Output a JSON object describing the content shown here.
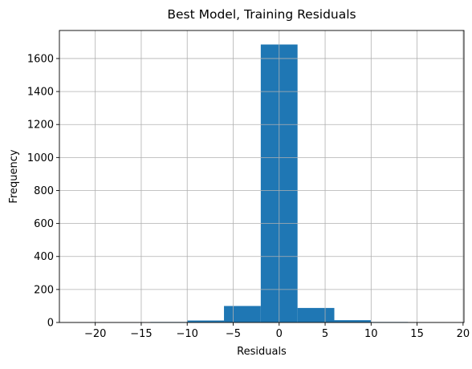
{
  "chart_data": {
    "type": "bar",
    "title": "Best Model, Training Residuals",
    "xlabel": "Residuals",
    "ylabel": "Frequency",
    "xlim": [
      -23.9,
      20.1
    ],
    "ylim": [
      0,
      1770
    ],
    "grid": true,
    "bar_color": "#1f77b4",
    "grid_color": "#b0b0b0",
    "bins": [
      {
        "x0": -22.0,
        "x1": -18.0,
        "count": 1
      },
      {
        "x0": -18.0,
        "x1": -14.0,
        "count": 1
      },
      {
        "x0": -14.0,
        "x1": -10.0,
        "count": 3
      },
      {
        "x0": -10.0,
        "x1": -6.0,
        "count": 12
      },
      {
        "x0": -6.0,
        "x1": -2.0,
        "count": 100
      },
      {
        "x0": -2.0,
        "x1": 2.0,
        "count": 1685
      },
      {
        "x0": 2.0,
        "x1": 6.0,
        "count": 88
      },
      {
        "x0": 6.0,
        "x1": 10.0,
        "count": 14
      },
      {
        "x0": 10.0,
        "x1": 14.0,
        "count": 3
      },
      {
        "x0": 14.0,
        "x1": 18.0,
        "count": 2
      }
    ],
    "x_ticks": [
      -20,
      -15,
      -10,
      -5,
      0,
      5,
      10,
      15,
      20
    ],
    "x_tick_labels": [
      "−20",
      "−15",
      "−10",
      "−5",
      "0",
      "5",
      "10",
      "15",
      "20"
    ],
    "y_ticks": [
      0,
      200,
      400,
      600,
      800,
      1000,
      1200,
      1400,
      1600
    ],
    "y_tick_labels": [
      "0",
      "200",
      "400",
      "600",
      "800",
      "1000",
      "1200",
      "1400",
      "1600"
    ]
  }
}
